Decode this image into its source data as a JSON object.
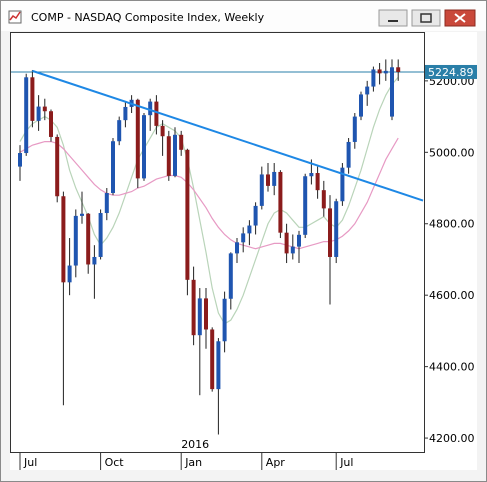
{
  "chart_data": {
    "type": "candlestick",
    "title": "COMP - NASDAQ Composite Index, Weekly",
    "categories": [
      "Jul",
      null,
      null,
      null,
      null,
      null,
      null,
      null,
      null,
      null,
      null,
      null,
      null,
      "Oct",
      null,
      null,
      null,
      null,
      null,
      null,
      null,
      null,
      null,
      null,
      null,
      null,
      "Jan",
      null,
      null,
      null,
      null,
      null,
      null,
      null,
      null,
      null,
      null,
      null,
      null,
      "Apr",
      null,
      null,
      null,
      null,
      null,
      null,
      null,
      null,
      null,
      null,
      null,
      "Jul",
      null,
      null,
      null,
      null,
      null,
      null,
      null,
      null,
      null,
      null
    ],
    "open": [
      4960,
      4998,
      5210,
      5088,
      5128,
      5115,
      5043,
      4877,
      4636,
      4683,
      4822,
      4828,
      4686,
      4707,
      4830,
      4886,
      5031,
      5090,
      5127,
      5147,
      4927,
      5104,
      5142,
      5074,
      5045,
      4934,
      5049,
      5007,
      4643,
      4488,
      4591,
      4504,
      4337,
      4471,
      4590,
      4717,
      4748,
      4773,
      4795,
      4850,
      4938,
      4906,
      4945,
      4775,
      4717,
      4736,
      4769,
      4933,
      4942,
      4894,
      4843,
      4707,
      4863,
      4957,
      5029,
      5100,
      5162,
      5184,
      5232,
      5221,
      5100,
      5238
    ],
    "high": [
      5020,
      5220,
      5230,
      5160,
      5150,
      5120,
      5050,
      4890,
      4760,
      4840,
      4890,
      4830,
      4740,
      4840,
      4900,
      5040,
      5100,
      5140,
      5160,
      5150,
      5110,
      5150,
      5160,
      5090,
      5060,
      5070,
      5060,
      5010,
      4680,
      4620,
      4620,
      4510,
      4480,
      4610,
      4720,
      4760,
      4790,
      4810,
      4860,
      4960,
      4970,
      4970,
      4950,
      4800,
      4770,
      4780,
      4940,
      4980,
      4960,
      4920,
      4880,
      4870,
      4970,
      5040,
      5110,
      5170,
      5200,
      5240,
      5250,
      5260,
      5260,
      5260
    ],
    "low": [
      4920,
      4990,
      5070,
      5060,
      5090,
      5030,
      4860,
      4292,
      4600,
      4650,
      4800,
      4660,
      4590,
      4700,
      4810,
      4880,
      5020,
      5070,
      5110,
      4900,
      4920,
      5060,
      5050,
      4990,
      4920,
      4930,
      4990,
      4600,
      4460,
      4320,
      4450,
      4330,
      4210,
      4440,
      4560,
      4690,
      4720,
      4740,
      4770,
      4840,
      4890,
      4880,
      4760,
      4690,
      4700,
      4690,
      4760,
      4910,
      4870,
      4820,
      4574,
      4690,
      4850,
      4940,
      5010,
      5090,
      5130,
      5170,
      5190,
      5200,
      5090,
      5200
    ],
    "close": [
      4998,
      5210,
      5088,
      5128,
      5115,
      5043,
      4877,
      4636,
      4683,
      4822,
      4828,
      4686,
      4707,
      4830,
      4886,
      5031,
      5090,
      5127,
      5147,
      4927,
      5104,
      5142,
      5074,
      5045,
      4934,
      5049,
      5007,
      4643,
      4488,
      4591,
      4504,
      4337,
      4471,
      4590,
      4717,
      4748,
      4773,
      4795,
      4850,
      4938,
      4906,
      4945,
      4775,
      4717,
      4736,
      4769,
      4933,
      4942,
      4894,
      4843,
      4707,
      4863,
      4957,
      5029,
      5100,
      5162,
      5184,
      5232,
      5221,
      5228,
      5238,
      5224.89
    ],
    "up_color": "#1f55b0",
    "down_color": "#8b1c1c",
    "overlays": [
      {
        "color": "#b9d4b9",
        "values": [
          5030,
          5060,
          5080,
          5090,
          5100,
          5090,
          5070,
          5020,
          4950,
          4900,
          4860,
          4820,
          4770,
          4740,
          4760,
          4790,
          4830,
          4880,
          4930,
          4980,
          5010,
          5040,
          5070,
          5080,
          5070,
          5060,
          5040,
          4980,
          4900,
          4810,
          4720,
          4620,
          4550,
          4520,
          4530,
          4560,
          4600,
          4650,
          4700,
          4750,
          4800,
          4830,
          4840,
          4830,
          4810,
          4790,
          4790,
          4800,
          4810,
          4820,
          4800,
          4790,
          4810,
          4850,
          4900,
          4950,
          5010,
          5070,
          5120,
          5160,
          5190,
          5210
        ]
      },
      {
        "color": "#e79ac4",
        "values": [
          5000,
          5010,
          5020,
          5025,
          5030,
          5030,
          5025,
          5010,
          4990,
          4970,
          4950,
          4930,
          4910,
          4895,
          4885,
          4880,
          4880,
          4885,
          4890,
          4900,
          4905,
          4915,
          4925,
          4930,
          4935,
          4935,
          4930,
          4915,
          4895,
          4870,
          4845,
          4815,
          4790,
          4770,
          4755,
          4745,
          4740,
          4735,
          4730,
          4735,
          4740,
          4745,
          4745,
          4740,
          4735,
          4730,
          4735,
          4740,
          4745,
          4750,
          4750,
          4755,
          4765,
          4780,
          4800,
          4830,
          4860,
          4900,
          4940,
          4980,
          5010,
          5040
        ]
      }
    ],
    "trendline": {
      "color": "#1e88e5",
      "x": [
        2,
        65
      ],
      "values": [
        5228,
        4865
      ]
    },
    "last_price": 5224.89,
    "annotations": [
      {
        "text": "2016",
        "x": 26
      }
    ],
    "ylim": [
      4161,
      5334
    ],
    "yticks": [
      {
        "value": 4200,
        "label": "4200.00"
      },
      {
        "value": 4400,
        "label": "4400.00"
      },
      {
        "value": 4600,
        "label": "4600.00"
      },
      {
        "value": 4800,
        "label": "4800.00"
      },
      {
        "value": 5000,
        "label": "5000.00"
      },
      {
        "value": 5200,
        "label": "5200.00"
      }
    ]
  }
}
